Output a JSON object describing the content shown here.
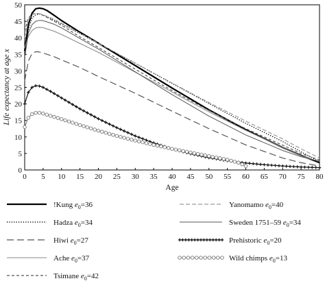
{
  "chart_data": {
    "type": "line",
    "xlabel": "Age",
    "ylabel": "Life expectancy at age x",
    "xlim": [
      0,
      80
    ],
    "ylim": [
      0,
      50
    ],
    "xticks": [
      0,
      5,
      10,
      15,
      20,
      25,
      30,
      35,
      40,
      45,
      50,
      55,
      60,
      65,
      70,
      75,
      80
    ],
    "yticks": [
      0,
      5,
      10,
      15,
      20,
      25,
      30,
      35,
      40,
      45,
      50
    ],
    "grid": false,
    "legend_position": "bottom",
    "series": [
      {
        "name": "!Kung",
        "e0": "36",
        "color": "#000000",
        "style": "thick-solid",
        "x": [
          0,
          1,
          2,
          3,
          4,
          5,
          6,
          8,
          10,
          15,
          20,
          30,
          40,
          50,
          60,
          70,
          75,
          80
        ],
        "y": [
          36,
          44,
          47.5,
          48.8,
          49,
          48.8,
          48.3,
          46.8,
          45.2,
          41.7,
          38.4,
          31.6,
          24.8,
          18.2,
          12.2,
          6.8,
          4.4,
          2.2
        ]
      },
      {
        "name": "Hadza",
        "e0": "34",
        "color": "#000000",
        "style": "dotted",
        "x": [
          0,
          1,
          2,
          3,
          4,
          5,
          8,
          10,
          15,
          20,
          30,
          40,
          50,
          60,
          70,
          75,
          80
        ],
        "y": [
          34,
          42.5,
          46,
          47,
          47.2,
          46.9,
          45.3,
          44.2,
          41.3,
          38.3,
          32.3,
          26.2,
          20.1,
          14.1,
          8.6,
          5.5,
          2.5
        ]
      },
      {
        "name": "Hiwi",
        "e0": "27",
        "color": "#555555",
        "style": "long-dash",
        "x": [
          0,
          1,
          2,
          3,
          4,
          5,
          8,
          10,
          15,
          20,
          30,
          40,
          50,
          60,
          70,
          75,
          80
        ],
        "y": [
          27,
          33,
          35.3,
          35.8,
          35.7,
          35.4,
          34.3,
          33.3,
          31,
          28.3,
          23.2,
          17.8,
          12.5,
          7.6,
          3.6,
          2.2,
          1.2
        ]
      },
      {
        "name": "Ache",
        "e0": "37",
        "color": "#8a8a8a",
        "style": "solid",
        "x": [
          0,
          1,
          2,
          3,
          4,
          5,
          8,
          10,
          15,
          20,
          30,
          40,
          50,
          60,
          70,
          75,
          80
        ],
        "y": [
          37,
          40.5,
          42.2,
          43,
          43.2,
          43.1,
          42,
          41,
          38.3,
          35.6,
          29.6,
          23.6,
          17.6,
          12,
          6.8,
          4.3,
          2.5
        ]
      },
      {
        "name": "Tsimane",
        "e0": "42",
        "color": "#555555",
        "style": "short-dash",
        "x": [
          0,
          1,
          2,
          3,
          4,
          5,
          8,
          10,
          15,
          20,
          30,
          40,
          50,
          60,
          70,
          75,
          80
        ],
        "y": [
          42,
          46,
          47.2,
          47.4,
          47.2,
          46.8,
          45,
          43.8,
          40.3,
          37.1,
          30.5,
          24,
          18,
          12.5,
          7.5,
          5,
          3
        ]
      },
      {
        "name": "Yanomamo",
        "e0": "40",
        "color": "#9a9a9a",
        "style": "medium-dash",
        "x": [
          0,
          1,
          2,
          3,
          4,
          5,
          8,
          10,
          15,
          20,
          30,
          40,
          50,
          60,
          70,
          75,
          80
        ],
        "y": [
          40,
          45.5,
          47,
          47.4,
          47.3,
          47,
          45.6,
          44.5,
          41.4,
          38.4,
          32.3,
          26.3,
          20.4,
          14.8,
          9.4,
          6.4,
          3.6
        ]
      },
      {
        "name": "Sweden 1751–59",
        "e0": "34",
        "color": "#555555",
        "style": "thin-solid",
        "x": [
          0,
          1,
          2,
          3,
          4,
          5,
          8,
          10,
          15,
          20,
          30,
          40,
          50,
          60,
          70,
          75,
          80
        ],
        "y": [
          34,
          41.5,
          44,
          45,
          45.3,
          45.2,
          44.1,
          43,
          39.8,
          36.6,
          29.7,
          22.8,
          16.3,
          10.6,
          5.9,
          4,
          2.6
        ]
      },
      {
        "name": "Prehistoric",
        "e0": "20",
        "color": "#111111",
        "style": "plus-markers",
        "x": [
          0,
          1,
          2,
          3,
          4,
          5,
          7,
          10,
          15,
          20,
          25,
          30,
          35,
          40,
          45,
          50,
          55,
          60,
          65,
          70,
          75,
          80
        ],
        "y": [
          20,
          23.5,
          25,
          25.5,
          25.4,
          25,
          23.8,
          21.8,
          18.5,
          15.5,
          12.8,
          10.3,
          8.2,
          6.4,
          4.9,
          3.7,
          2.8,
          2.1,
          1.6,
          1.2,
          0.9,
          0.7
        ]
      },
      {
        "name": "Wild chimps",
        "e0": "13",
        "color": "#777777",
        "style": "circle-markers",
        "x": [
          0,
          1,
          2,
          3,
          4,
          5,
          7,
          10,
          15,
          20,
          25,
          30,
          35,
          40,
          45,
          50,
          55,
          58,
          60
        ],
        "y": [
          13,
          15.8,
          16.9,
          17.3,
          17.3,
          17.1,
          16.4,
          15.4,
          13.6,
          11.9,
          10.3,
          8.9,
          7.6,
          6.4,
          5.3,
          4.2,
          3.1,
          2.2,
          1.2
        ]
      }
    ]
  }
}
